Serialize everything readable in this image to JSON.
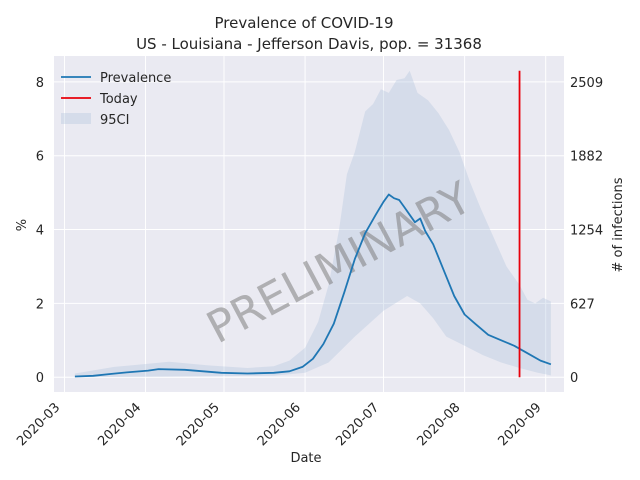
{
  "chart_data": {
    "type": "line",
    "title": "Prevalence of COVID-19",
    "subtitle": "US - Louisiana - Jefferson Davis, pop. = 31368",
    "xlabel": "Date",
    "ylabel": "%",
    "y2label": "# of infections",
    "watermark": "PRELIMINARY",
    "grid": true,
    "legend_position": "top-left",
    "xlim": [
      "2020-02-26",
      "2020-09-08"
    ],
    "ylim": [
      -0.4,
      8.7
    ],
    "x_ticks": [
      "2020-03",
      "2020-04",
      "2020-05",
      "2020-06",
      "2020-07",
      "2020-08",
      "2020-09"
    ],
    "y_ticks": [
      0,
      2,
      4,
      6,
      8
    ],
    "y2_ticks": [
      0,
      627,
      1254,
      1882,
      2509
    ],
    "today": {
      "name": "Today",
      "date": "2020-08-22",
      "y_range": [
        0,
        8.3
      ],
      "color": "#e8000b"
    },
    "series": [
      {
        "name": "Prevalence",
        "color": "#1f77b4",
        "points": [
          [
            "2020-03-05",
            0.02
          ],
          [
            "2020-03-12",
            0.04
          ],
          [
            "2020-03-19",
            0.09
          ],
          [
            "2020-03-26",
            0.14
          ],
          [
            "2020-04-02",
            0.18
          ],
          [
            "2020-04-06",
            0.22
          ],
          [
            "2020-04-16",
            0.2
          ],
          [
            "2020-04-23",
            0.16
          ],
          [
            "2020-04-30",
            0.12
          ],
          [
            "2020-05-10",
            0.1
          ],
          [
            "2020-05-20",
            0.12
          ],
          [
            "2020-05-26",
            0.16
          ],
          [
            "2020-05-31",
            0.28
          ],
          [
            "2020-06-04",
            0.5
          ],
          [
            "2020-06-08",
            0.9
          ],
          [
            "2020-06-12",
            1.45
          ],
          [
            "2020-06-16",
            2.3
          ],
          [
            "2020-06-20",
            3.2
          ],
          [
            "2020-06-24",
            3.9
          ],
          [
            "2020-06-28",
            4.4
          ],
          [
            "2020-07-01",
            4.75
          ],
          [
            "2020-07-03",
            4.95
          ],
          [
            "2020-07-05",
            4.85
          ],
          [
            "2020-07-07",
            4.8
          ],
          [
            "2020-07-09",
            4.6
          ],
          [
            "2020-07-11",
            4.4
          ],
          [
            "2020-07-13",
            4.2
          ],
          [
            "2020-07-15",
            4.3
          ],
          [
            "2020-07-17",
            3.95
          ],
          [
            "2020-07-20",
            3.6
          ],
          [
            "2020-07-24",
            2.9
          ],
          [
            "2020-07-28",
            2.2
          ],
          [
            "2020-08-01",
            1.7
          ],
          [
            "2020-08-05",
            1.45
          ],
          [
            "2020-08-10",
            1.15
          ],
          [
            "2020-08-15",
            1.0
          ],
          [
            "2020-08-20",
            0.85
          ],
          [
            "2020-08-25",
            0.65
          ],
          [
            "2020-08-30",
            0.45
          ],
          [
            "2020-09-03",
            0.35
          ]
        ]
      },
      {
        "name": "95CI",
        "color": "#b0c4de",
        "upper": [
          [
            "2020-03-05",
            0.1
          ],
          [
            "2020-03-20",
            0.28
          ],
          [
            "2020-04-10",
            0.42
          ],
          [
            "2020-04-25",
            0.32
          ],
          [
            "2020-05-10",
            0.25
          ],
          [
            "2020-05-20",
            0.3
          ],
          [
            "2020-05-26",
            0.45
          ],
          [
            "2020-06-01",
            0.8
          ],
          [
            "2020-06-06",
            1.5
          ],
          [
            "2020-06-10",
            2.5
          ],
          [
            "2020-06-14",
            4.0
          ],
          [
            "2020-06-17",
            5.5
          ],
          [
            "2020-06-20",
            6.1
          ],
          [
            "2020-06-24",
            7.2
          ],
          [
            "2020-06-27",
            7.4
          ],
          [
            "2020-06-30",
            7.8
          ],
          [
            "2020-07-03",
            7.7
          ],
          [
            "2020-07-06",
            8.05
          ],
          [
            "2020-07-09",
            8.1
          ],
          [
            "2020-07-11",
            8.3
          ],
          [
            "2020-07-14",
            7.7
          ],
          [
            "2020-07-18",
            7.5
          ],
          [
            "2020-07-22",
            7.15
          ],
          [
            "2020-07-26",
            6.7
          ],
          [
            "2020-07-30",
            6.1
          ],
          [
            "2020-08-03",
            5.3
          ],
          [
            "2020-08-07",
            4.6
          ],
          [
            "2020-08-12",
            3.8
          ],
          [
            "2020-08-17",
            3.0
          ],
          [
            "2020-08-22",
            2.5
          ],
          [
            "2020-08-25",
            2.1
          ],
          [
            "2020-08-28",
            2.0
          ],
          [
            "2020-08-31",
            2.15
          ],
          [
            "2020-09-03",
            2.05
          ]
        ],
        "lower": [
          [
            "2020-03-05",
            0.0
          ],
          [
            "2020-05-20",
            0.04
          ],
          [
            "2020-06-01",
            0.12
          ],
          [
            "2020-06-10",
            0.4
          ],
          [
            "2020-06-20",
            1.1
          ],
          [
            "2020-07-01",
            1.8
          ],
          [
            "2020-07-10",
            2.2
          ],
          [
            "2020-07-15",
            2.0
          ],
          [
            "2020-07-20",
            1.6
          ],
          [
            "2020-07-25",
            1.1
          ],
          [
            "2020-08-01",
            0.85
          ],
          [
            "2020-08-08",
            0.6
          ],
          [
            "2020-08-15",
            0.4
          ],
          [
            "2020-08-22",
            0.25
          ],
          [
            "2020-08-29",
            0.12
          ],
          [
            "2020-09-03",
            0.05
          ]
        ]
      }
    ]
  }
}
